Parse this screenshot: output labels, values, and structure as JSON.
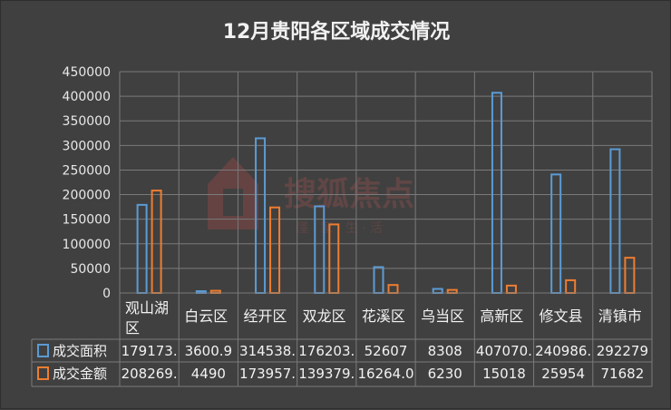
{
  "chart_data": {
    "type": "bar",
    "title": "12月贵阳各区域成交情况",
    "categories": [
      "观山湖区",
      "白云区",
      "经开区",
      "双龙区",
      "花溪区",
      "乌当区",
      "高新区",
      "修文县",
      "清镇市"
    ],
    "series": [
      {
        "name": "成交面积",
        "color": "#5b9bd5",
        "values": [
          179173,
          3600.9,
          314538,
          176203,
          52607,
          8308,
          407070,
          240986,
          292279
        ],
        "labels": [
          "179173.",
          "3600.9",
          "314538.",
          "176203.",
          "52607",
          "8308",
          "407070.",
          "240986.",
          "292279"
        ]
      },
      {
        "name": "成交金额",
        "color": "#ed7d31",
        "values": [
          208269,
          4490,
          173957,
          139379,
          16264.0,
          6230,
          15018,
          25954,
          71682
        ],
        "labels": [
          "208269.",
          "4490",
          "173957.",
          "139379.",
          "16264.0",
          "6230",
          "15018",
          "25954",
          "71682"
        ]
      }
    ],
    "ylim": [
      0,
      450000
    ],
    "yticks": [
      "0",
      "50000",
      "100000",
      "150000",
      "200000",
      "250000",
      "300000",
      "350000",
      "400000",
      "450000"
    ],
    "grid": true,
    "legend": "data-table"
  },
  "watermark": {
    "text": "搜狐焦点",
    "sub": "懂 · 家 · 生 · 活"
  }
}
